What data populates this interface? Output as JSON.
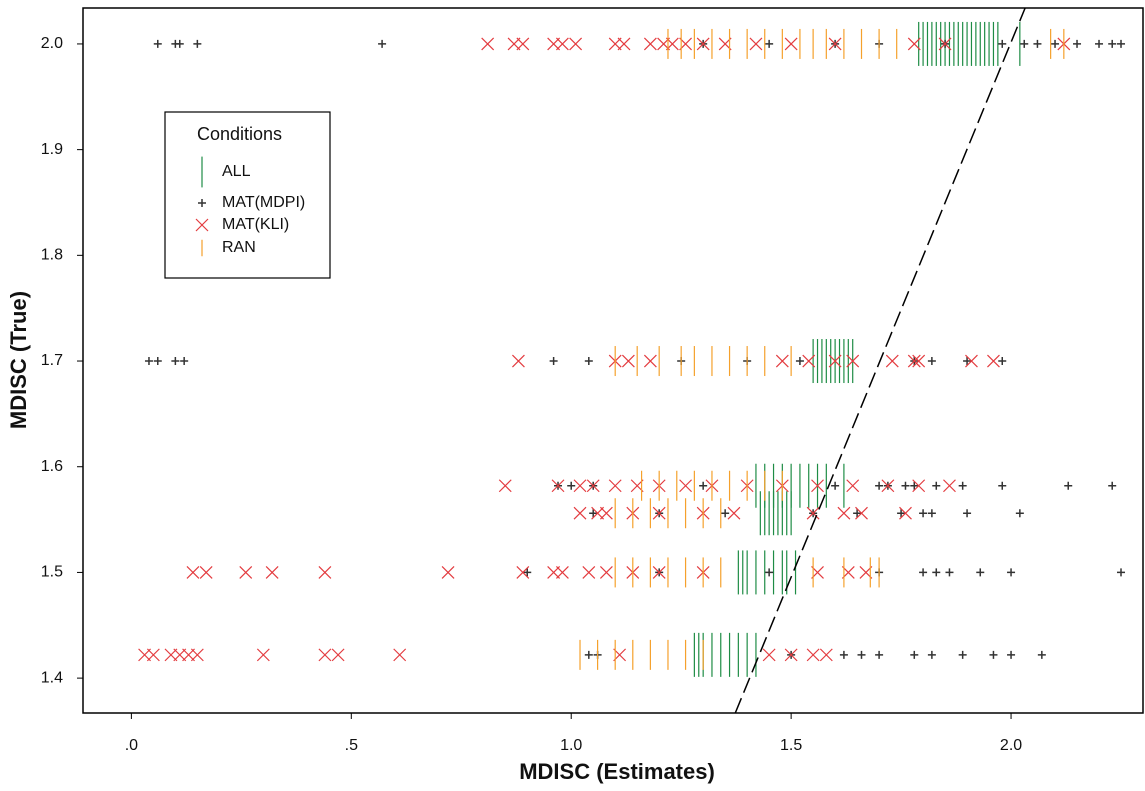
{
  "chart_data": {
    "type": "scatter",
    "xlabel": "MDISC (Estimates)",
    "ylabel": "MDISC (True)",
    "xlim": [
      -0.11,
      2.3
    ],
    "ylim": [
      1.367,
      2.034
    ],
    "xticks": [
      {
        "value": 0,
        "label": ".0"
      },
      {
        "value": 0.5,
        "label": ".5"
      },
      {
        "value": 1,
        "label": "1.0"
      },
      {
        "value": 1.5,
        "label": "1.5"
      },
      {
        "value": 2,
        "label": "2.0"
      }
    ],
    "yticks": [
      1.4,
      1.5,
      1.6,
      1.7,
      1.8,
      1.9,
      {
        "value": 2,
        "label": "2.0"
      }
    ],
    "legend_title": "Conditions",
    "legend_position": "upper left",
    "reference_line": {
      "x": [
        1.373,
        2.032
      ],
      "y": [
        1.367,
        2.034
      ]
    },
    "series": [
      {
        "name": "ALL",
        "color": "#1e8c45",
        "marker": "tall-line",
        "x": [
          1.79,
          1.8,
          1.81,
          1.82,
          1.83,
          1.84,
          1.85,
          1.86,
          1.87,
          1.88,
          1.89,
          1.9,
          1.91,
          1.92,
          1.93,
          1.94,
          1.95,
          1.96,
          1.97,
          2.02,
          1.55,
          1.56,
          1.57,
          1.58,
          1.59,
          1.6,
          1.61,
          1.62,
          1.63,
          1.64,
          1.42,
          1.44,
          1.46,
          1.48,
          1.5,
          1.52,
          1.54,
          1.56,
          1.58,
          1.62,
          1.43,
          1.44,
          1.45,
          1.46,
          1.47,
          1.48,
          1.49,
          1.5,
          1.38,
          1.39,
          1.4,
          1.42,
          1.44,
          1.46,
          1.48,
          1.49,
          1.51,
          1.28,
          1.29,
          1.3,
          1.32,
          1.34,
          1.36,
          1.38,
          1.4,
          1.42
        ],
        "y": [
          2,
          2,
          2,
          2,
          2,
          2,
          2,
          2,
          2,
          2,
          2,
          2,
          2,
          2,
          2,
          2,
          2,
          2,
          2,
          2,
          1.7,
          1.7,
          1.7,
          1.7,
          1.7,
          1.7,
          1.7,
          1.7,
          1.7,
          1.7,
          1.582,
          1.582,
          1.582,
          1.582,
          1.582,
          1.582,
          1.582,
          1.582,
          1.582,
          1.582,
          1.556,
          1.556,
          1.556,
          1.556,
          1.556,
          1.556,
          1.556,
          1.556,
          1.5,
          1.5,
          1.5,
          1.5,
          1.5,
          1.5,
          1.5,
          1.5,
          1.5,
          1.422,
          1.422,
          1.422,
          1.422,
          1.422,
          1.422,
          1.422,
          1.422,
          1.422
        ]
      },
      {
        "name": "MAT(MDPI)",
        "color": "#333333",
        "marker": "plus",
        "x": [
          0.06,
          0.1,
          0.11,
          0.15,
          0.57,
          1.3,
          1.45,
          1.6,
          1.7,
          1.85,
          1.98,
          2.03,
          2.06,
          2.1,
          2.15,
          2.2,
          2.23,
          2.25,
          0.04,
          0.06,
          0.1,
          0.12,
          0.96,
          1.04,
          1.25,
          1.4,
          1.52,
          1.78,
          1.82,
          1.9,
          1.98,
          0.97,
          1.0,
          1.05,
          1.3,
          1.6,
          1.7,
          1.72,
          1.76,
          1.78,
          1.83,
          1.89,
          1.98,
          2.13,
          2.23,
          1.05,
          1.2,
          1.35,
          1.55,
          1.65,
          1.75,
          1.8,
          1.82,
          1.9,
          2.02,
          0.9,
          1.2,
          1.45,
          1.7,
          1.8,
          1.83,
          1.86,
          1.93,
          2.0,
          2.25,
          1.04,
          1.06,
          1.5,
          1.62,
          1.66,
          1.7,
          1.78,
          1.82,
          1.89,
          1.96,
          2.0,
          2.07
        ],
        "y": [
          2,
          2,
          2,
          2,
          2,
          2,
          2,
          2,
          2,
          2,
          2,
          2,
          2,
          2,
          2,
          2,
          2,
          2,
          1.7,
          1.7,
          1.7,
          1.7,
          1.7,
          1.7,
          1.7,
          1.7,
          1.7,
          1.7,
          1.7,
          1.7,
          1.7,
          1.582,
          1.582,
          1.582,
          1.582,
          1.582,
          1.582,
          1.582,
          1.582,
          1.582,
          1.582,
          1.582,
          1.582,
          1.582,
          1.582,
          1.556,
          1.556,
          1.556,
          1.556,
          1.556,
          1.556,
          1.556,
          1.556,
          1.556,
          1.556,
          1.5,
          1.5,
          1.5,
          1.5,
          1.5,
          1.5,
          1.5,
          1.5,
          1.5,
          1.5,
          1.422,
          1.422,
          1.422,
          1.422,
          1.422,
          1.422,
          1.422,
          1.422,
          1.422,
          1.422,
          1.422,
          1.422
        ]
      },
      {
        "name": "MAT(KLI)",
        "color": "#e33b3f",
        "marker": "cross",
        "x": [
          0.81,
          0.87,
          0.89,
          0.96,
          0.98,
          1.01,
          1.1,
          1.12,
          1.18,
          1.21,
          1.23,
          1.26,
          1.3,
          1.35,
          1.42,
          1.5,
          1.6,
          1.78,
          1.85,
          2.12,
          0.88,
          1.1,
          1.13,
          1.18,
          1.48,
          1.54,
          1.6,
          1.64,
          1.73,
          1.78,
          1.79,
          1.91,
          1.96,
          0.85,
          0.97,
          1.02,
          1.05,
          1.1,
          1.15,
          1.2,
          1.26,
          1.32,
          1.4,
          1.48,
          1.56,
          1.64,
          1.72,
          1.79,
          1.86,
          1.02,
          1.06,
          1.08,
          1.14,
          1.2,
          1.3,
          1.37,
          1.55,
          1.62,
          1.66,
          1.76,
          0.14,
          0.17,
          0.26,
          0.32,
          0.44,
          0.72,
          0.89,
          0.96,
          0.98,
          1.04,
          1.08,
          1.14,
          1.2,
          1.3,
          1.56,
          1.63,
          1.67,
          0.03,
          0.05,
          0.09,
          0.11,
          0.13,
          0.15,
          0.3,
          0.44,
          0.47,
          0.61,
          1.11,
          1.45,
          1.5,
          1.55,
          1.58
        ],
        "y": [
          2,
          2,
          2,
          2,
          2,
          2,
          2,
          2,
          2,
          2,
          2,
          2,
          2,
          2,
          2,
          2,
          2,
          2,
          2,
          2,
          1.7,
          1.7,
          1.7,
          1.7,
          1.7,
          1.7,
          1.7,
          1.7,
          1.7,
          1.7,
          1.7,
          1.7,
          1.7,
          1.582,
          1.582,
          1.582,
          1.582,
          1.582,
          1.582,
          1.582,
          1.582,
          1.582,
          1.582,
          1.582,
          1.582,
          1.582,
          1.582,
          1.582,
          1.582,
          1.556,
          1.556,
          1.556,
          1.556,
          1.556,
          1.556,
          1.556,
          1.556,
          1.556,
          1.556,
          1.556,
          1.5,
          1.5,
          1.5,
          1.5,
          1.5,
          1.5,
          1.5,
          1.5,
          1.5,
          1.5,
          1.5,
          1.5,
          1.5,
          1.5,
          1.5,
          1.5,
          1.5,
          1.422,
          1.422,
          1.422,
          1.422,
          1.422,
          1.422,
          1.422,
          1.422,
          1.422,
          1.422,
          1.422,
          1.422,
          1.422,
          1.422,
          1.422
        ]
      },
      {
        "name": "RAN",
        "color": "#f5a12c",
        "marker": "line",
        "x": [
          1.22,
          1.25,
          1.28,
          1.32,
          1.36,
          1.4,
          1.44,
          1.48,
          1.52,
          1.55,
          1.58,
          1.62,
          1.66,
          1.7,
          1.74,
          2.09,
          2.12,
          1.1,
          1.15,
          1.2,
          1.25,
          1.28,
          1.32,
          1.36,
          1.4,
          1.44,
          1.5,
          1.16,
          1.2,
          1.24,
          1.28,
          1.32,
          1.36,
          1.4,
          1.44,
          1.48,
          1.1,
          1.14,
          1.18,
          1.22,
          1.26,
          1.3,
          1.34,
          1.1,
          1.14,
          1.18,
          1.22,
          1.26,
          1.3,
          1.34,
          1.55,
          1.62,
          1.68,
          1.7,
          1.02,
          1.06,
          1.1,
          1.14,
          1.18,
          1.22,
          1.26,
          1.3
        ],
        "y": [
          2,
          2,
          2,
          2,
          2,
          2,
          2,
          2,
          2,
          2,
          2,
          2,
          2,
          2,
          2,
          2,
          2,
          1.7,
          1.7,
          1.7,
          1.7,
          1.7,
          1.7,
          1.7,
          1.7,
          1.7,
          1.7,
          1.582,
          1.582,
          1.582,
          1.582,
          1.582,
          1.582,
          1.582,
          1.582,
          1.582,
          1.556,
          1.556,
          1.556,
          1.556,
          1.556,
          1.556,
          1.556,
          1.5,
          1.5,
          1.5,
          1.5,
          1.5,
          1.5,
          1.5,
          1.5,
          1.5,
          1.5,
          1.5,
          1.422,
          1.422,
          1.422,
          1.422,
          1.422,
          1.422,
          1.422,
          1.422
        ]
      }
    ]
  }
}
